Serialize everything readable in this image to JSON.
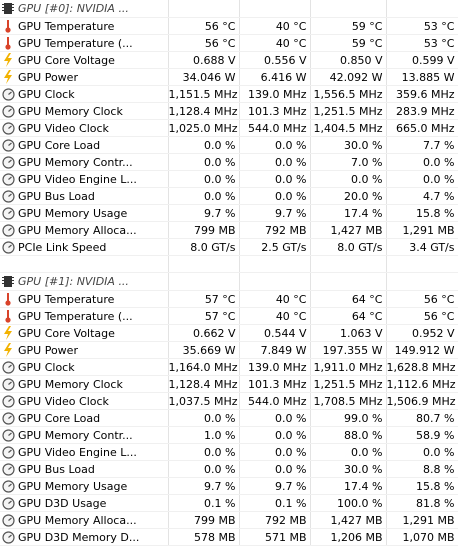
{
  "groups": [
    {
      "title": "GPU [#0]: NVIDIA ...",
      "rows": [
        {
          "icon": "thermometer-icon",
          "label": "GPU Temperature",
          "values": [
            "56 °C",
            "40 °C",
            "59 °C",
            "53 °C"
          ]
        },
        {
          "icon": "thermometer-icon",
          "label": "GPU Temperature (...",
          "values": [
            "56 °C",
            "40 °C",
            "59 °C",
            "53 °C"
          ]
        },
        {
          "icon": "lightning-icon",
          "label": "GPU Core Voltage",
          "values": [
            "0.688 V",
            "0.556 V",
            "0.850 V",
            "0.599 V"
          ]
        },
        {
          "icon": "lightning-icon",
          "label": "GPU Power",
          "values": [
            "34.046 W",
            "6.416 W",
            "42.092 W",
            "13.885 W"
          ]
        },
        {
          "icon": "gauge-icon",
          "label": "GPU Clock",
          "values": [
            "1,151.5 MHz",
            "139.0 MHz",
            "1,556.5 MHz",
            "359.6 MHz"
          ]
        },
        {
          "icon": "gauge-icon",
          "label": "GPU Memory Clock",
          "values": [
            "1,128.4 MHz",
            "101.3 MHz",
            "1,251.5 MHz",
            "283.9 MHz"
          ]
        },
        {
          "icon": "gauge-icon",
          "label": "GPU Video Clock",
          "values": [
            "1,025.0 MHz",
            "544.0 MHz",
            "1,404.5 MHz",
            "665.0 MHz"
          ]
        },
        {
          "icon": "gauge-icon",
          "label": "GPU Core Load",
          "values": [
            "0.0 %",
            "0.0 %",
            "30.0 %",
            "7.7 %"
          ]
        },
        {
          "icon": "gauge-icon",
          "label": "GPU Memory Contr...",
          "values": [
            "0.0 %",
            "0.0 %",
            "7.0 %",
            "0.0 %"
          ]
        },
        {
          "icon": "gauge-icon",
          "label": "GPU Video Engine L...",
          "values": [
            "0.0 %",
            "0.0 %",
            "0.0 %",
            "0.0 %"
          ]
        },
        {
          "icon": "gauge-icon",
          "label": "GPU Bus Load",
          "values": [
            "0.0 %",
            "0.0 %",
            "20.0 %",
            "4.7 %"
          ]
        },
        {
          "icon": "gauge-icon",
          "label": "GPU Memory Usage",
          "values": [
            "9.7 %",
            "9.7 %",
            "17.4 %",
            "15.8 %"
          ]
        },
        {
          "icon": "gauge-icon",
          "label": "GPU Memory Alloca...",
          "values": [
            "799 MB",
            "792 MB",
            "1,427 MB",
            "1,291 MB"
          ]
        },
        {
          "icon": "gauge-icon",
          "label": "PCIe Link Speed",
          "values": [
            "8.0 GT/s",
            "2.5 GT/s",
            "8.0 GT/s",
            "3.4 GT/s"
          ]
        }
      ]
    },
    {
      "title": "GPU [#1]: NVIDIA ...",
      "rows": [
        {
          "icon": "thermometer-icon",
          "label": "GPU Temperature",
          "values": [
            "57 °C",
            "40 °C",
            "64 °C",
            "56 °C"
          ]
        },
        {
          "icon": "thermometer-icon",
          "label": "GPU Temperature (...",
          "values": [
            "57 °C",
            "40 °C",
            "64 °C",
            "56 °C"
          ]
        },
        {
          "icon": "lightning-icon",
          "label": "GPU Core Voltage",
          "values": [
            "0.662 V",
            "0.544 V",
            "1.063 V",
            "0.952 V"
          ]
        },
        {
          "icon": "lightning-icon",
          "label": "GPU Power",
          "values": [
            "35.669 W",
            "7.849 W",
            "197.355 W",
            "149.912 W"
          ]
        },
        {
          "icon": "gauge-icon",
          "label": "GPU Clock",
          "values": [
            "1,164.0 MHz",
            "139.0 MHz",
            "1,911.0 MHz",
            "1,628.8 MHz"
          ]
        },
        {
          "icon": "gauge-icon",
          "label": "GPU Memory Clock",
          "values": [
            "1,128.4 MHz",
            "101.3 MHz",
            "1,251.5 MHz",
            "1,112.6 MHz"
          ]
        },
        {
          "icon": "gauge-icon",
          "label": "GPU Video Clock",
          "values": [
            "1,037.5 MHz",
            "544.0 MHz",
            "1,708.5 MHz",
            "1,506.9 MHz"
          ]
        },
        {
          "icon": "gauge-icon",
          "label": "GPU Core Load",
          "values": [
            "0.0 %",
            "0.0 %",
            "99.0 %",
            "80.7 %"
          ]
        },
        {
          "icon": "gauge-icon",
          "label": "GPU Memory Contr...",
          "values": [
            "1.0 %",
            "0.0 %",
            "88.0 %",
            "58.9 %"
          ]
        },
        {
          "icon": "gauge-icon",
          "label": "GPU Video Engine L...",
          "values": [
            "0.0 %",
            "0.0 %",
            "0.0 %",
            "0.0 %"
          ]
        },
        {
          "icon": "gauge-icon",
          "label": "GPU Bus Load",
          "values": [
            "0.0 %",
            "0.0 %",
            "30.0 %",
            "8.8 %"
          ]
        },
        {
          "icon": "gauge-icon",
          "label": "GPU Memory Usage",
          "values": [
            "9.7 %",
            "9.7 %",
            "17.4 %",
            "15.8 %"
          ]
        },
        {
          "icon": "gauge-icon",
          "label": "GPU D3D Usage",
          "values": [
            "0.1 %",
            "0.1 %",
            "100.0 %",
            "81.8 %"
          ]
        },
        {
          "icon": "gauge-icon",
          "label": "GPU Memory Alloca...",
          "values": [
            "799 MB",
            "792 MB",
            "1,427 MB",
            "1,291 MB"
          ]
        },
        {
          "icon": "gauge-icon",
          "label": "GPU D3D Memory D...",
          "values": [
            "578 MB",
            "571 MB",
            "1,206 MB",
            "1,070 MB"
          ]
        }
      ]
    }
  ],
  "colors": {
    "thermometer": "#d9432a",
    "lightning": "#f2b200",
    "gauge": "#555555",
    "chip": "#333333"
  }
}
